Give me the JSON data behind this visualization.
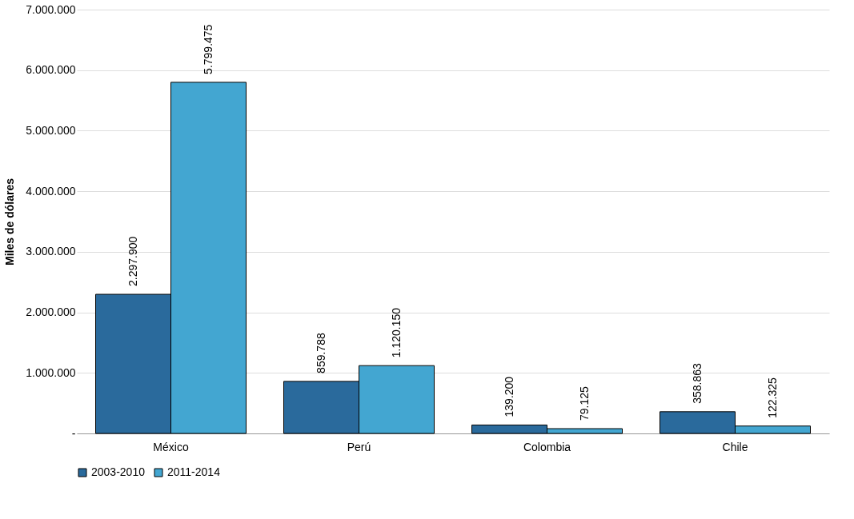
{
  "chart_data": {
    "type": "bar",
    "ylabel": "Miles de dólares",
    "categories": [
      "México",
      "Perú",
      "Colombia",
      "Chile"
    ],
    "series": [
      {
        "name": "2003-2010",
        "color": "#2a6a9c",
        "values": [
          2297900,
          859788,
          139200,
          358863
        ],
        "value_labels": [
          "2.297.900",
          "859.788",
          "139.200",
          "358.863"
        ]
      },
      {
        "name": "2011-2014",
        "color": "#43a6d1",
        "values": [
          5799475,
          1120150,
          79125,
          122325
        ],
        "value_labels": [
          "5.799.475",
          "1.120.150",
          "79.125",
          "122.325"
        ]
      }
    ],
    "ylim": [
      0,
      7000000
    ],
    "yticks": [
      {
        "value": 0,
        "label": "-"
      },
      {
        "value": 1000000,
        "label": "1.000.000"
      },
      {
        "value": 2000000,
        "label": "2.000.000"
      },
      {
        "value": 3000000,
        "label": "3.000.000"
      },
      {
        "value": 4000000,
        "label": "4.000.000"
      },
      {
        "value": 5000000,
        "label": "5.000.000"
      },
      {
        "value": 6000000,
        "label": "6.000.000"
      },
      {
        "value": 7000000,
        "label": "7.000.000"
      }
    ],
    "grid": "y",
    "legend": "bottom"
  }
}
